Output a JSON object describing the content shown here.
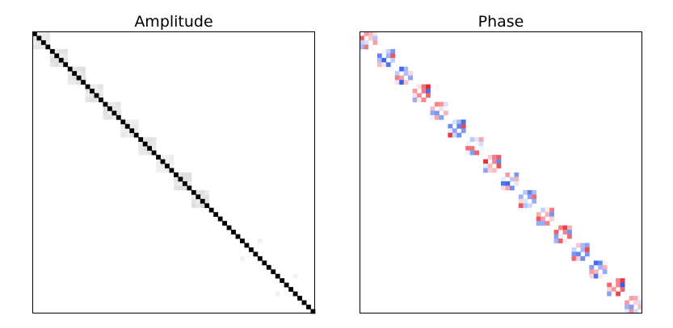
{
  "chart_data": [
    {
      "type": "heatmap",
      "title": "Amplitude",
      "xlabel": "",
      "ylabel": "",
      "size": 64,
      "ticks": "none",
      "colormap": "greys",
      "background_color": "#ffffff",
      "cell_color": "#000000",
      "diagonal_value": 1.0,
      "blocks": [
        {
          "start": 0,
          "size": 4,
          "value": 0.1
        },
        {
          "start": 4,
          "size": 4,
          "value": 0.1
        },
        {
          "start": 8,
          "size": 4,
          "value": 0.1
        },
        {
          "start": 12,
          "size": 4,
          "value": 0.1
        },
        {
          "start": 16,
          "size": 4,
          "value": 0.1
        },
        {
          "start": 20,
          "size": 4,
          "value": 0.08
        },
        {
          "start": 24,
          "size": 4,
          "value": 0.1
        },
        {
          "start": 28,
          "size": 4,
          "value": 0.06
        },
        {
          "start": 32,
          "size": 4,
          "value": 0.1
        },
        {
          "start": 36,
          "size": 4,
          "value": 0.1
        }
      ],
      "scattered_cells": [
        {
          "row": 47,
          "col": 51,
          "value": 0.05
        },
        {
          "row": 51,
          "col": 47,
          "value": 0.05
        },
        {
          "row": 55,
          "col": 59,
          "value": 0.05
        },
        {
          "row": 59,
          "col": 55,
          "value": 0.05
        },
        {
          "row": 57,
          "col": 56,
          "value": 0.04
        }
      ]
    },
    {
      "type": "heatmap",
      "title": "Phase",
      "xlabel": "",
      "ylabel": "",
      "size": 64,
      "ticks": "none",
      "colormap": "bwr",
      "positive_color": "#e8202a",
      "negative_color": "#1f4fef",
      "background_color": "#ffffff",
      "blocks": [
        {
          "start": 0,
          "size": 4
        },
        {
          "start": 4,
          "size": 4
        },
        {
          "start": 8,
          "size": 4
        },
        {
          "start": 12,
          "size": 4
        },
        {
          "start": 16,
          "size": 4
        },
        {
          "start": 20,
          "size": 4
        },
        {
          "start": 24,
          "size": 4
        },
        {
          "start": 28,
          "size": 4
        },
        {
          "start": 32,
          "size": 4
        },
        {
          "start": 36,
          "size": 4
        },
        {
          "start": 40,
          "size": 4
        },
        {
          "start": 44,
          "size": 4
        },
        {
          "start": 48,
          "size": 4
        },
        {
          "start": 52,
          "size": 4
        },
        {
          "start": 56,
          "size": 4
        },
        {
          "start": 60,
          "size": 4
        }
      ]
    }
  ]
}
